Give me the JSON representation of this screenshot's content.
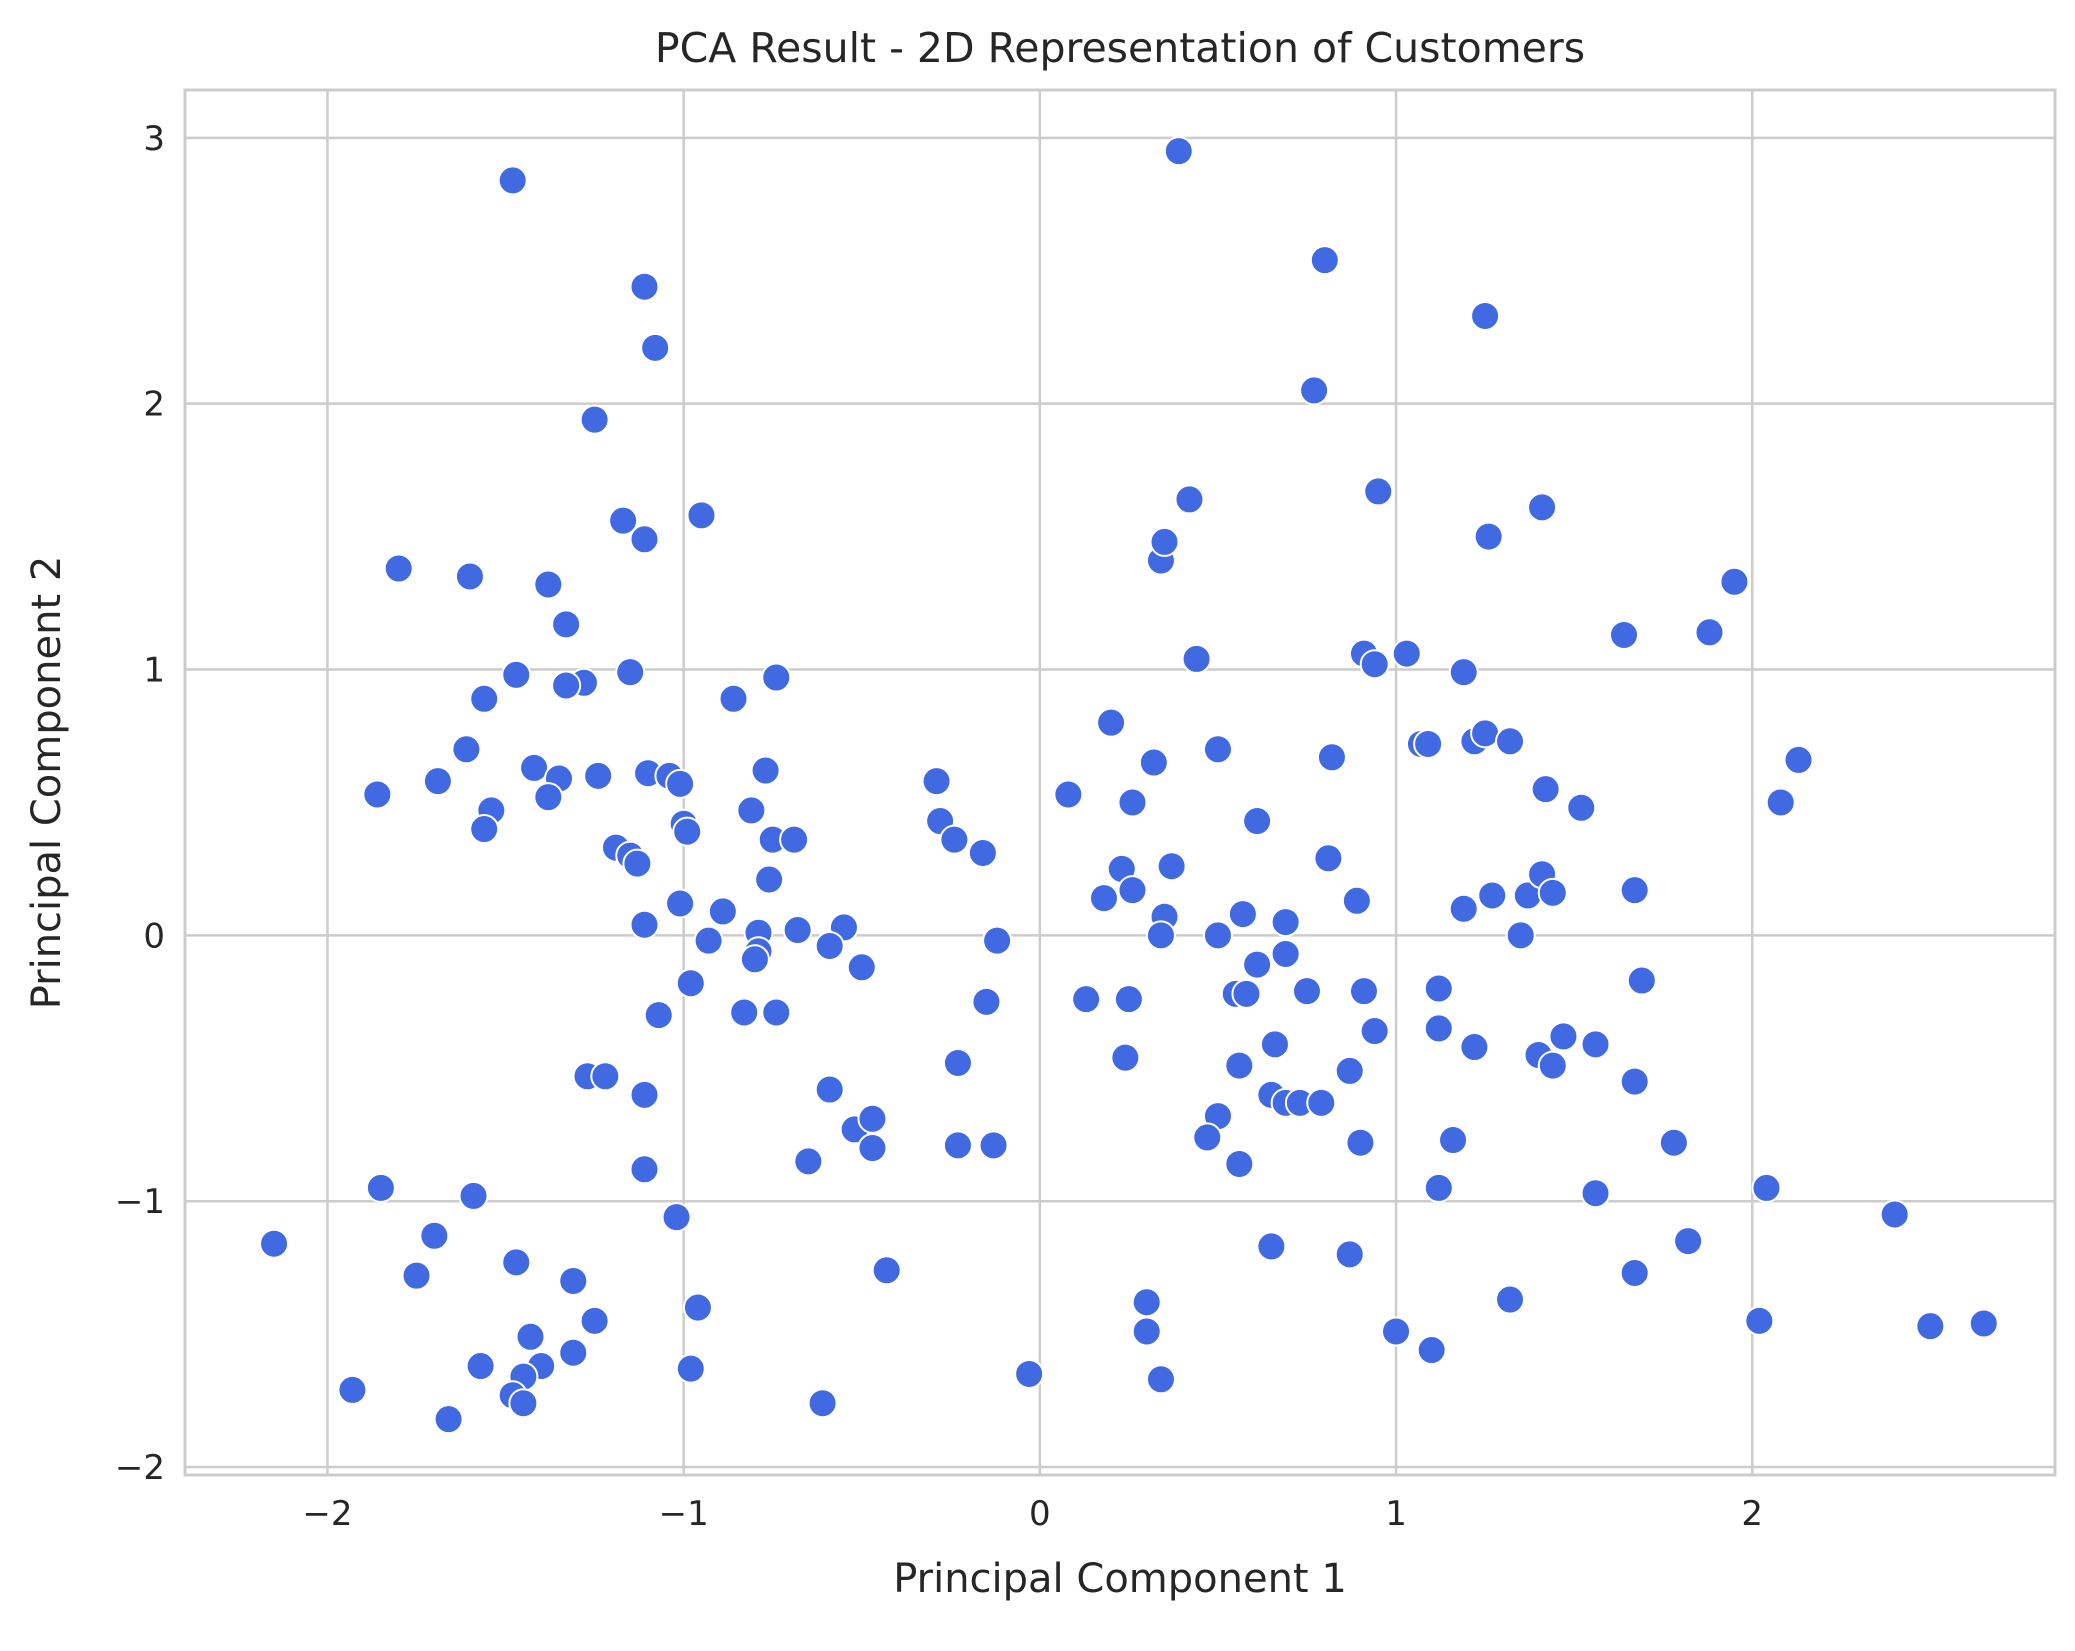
{
  "chart_data": {
    "type": "scatter",
    "title": "PCA Result - 2D Representation of Customers",
    "xlabel": "Principal Component 1",
    "ylabel": "Principal Component 2",
    "xlim": [
      -2.4,
      2.85
    ],
    "ylim": [
      -2.03,
      3.18
    ],
    "xticks": [
      -2,
      -1,
      0,
      1,
      2
    ],
    "yticks": [
      -2,
      -1,
      0,
      1,
      2,
      3
    ],
    "xtick_labels": [
      "−2",
      "−1",
      "0",
      "1",
      "2"
    ],
    "ytick_labels": [
      "−2",
      "−1",
      "0",
      "1",
      "2",
      "3"
    ],
    "grid": true,
    "marker_color": "#4169E1",
    "marker_edge_color": "#ffffff",
    "grid_color": "#cccccc",
    "points": [
      [
        -1.48,
        2.84
      ],
      [
        -1.11,
        2.44
      ],
      [
        -1.08,
        2.21
      ],
      [
        -1.25,
        1.94
      ],
      [
        -0.95,
        1.58
      ],
      [
        -1.17,
        1.56
      ],
      [
        -1.11,
        1.49
      ],
      [
        -1.8,
        1.38
      ],
      [
        -1.6,
        1.35
      ],
      [
        -1.38,
        1.32
      ],
      [
        -1.33,
        1.17
      ],
      [
        -1.15,
        0.99
      ],
      [
        -1.47,
        0.98
      ],
      [
        -1.28,
        0.95
      ],
      [
        -1.33,
        0.94
      ],
      [
        -1.56,
        0.89
      ],
      [
        -0.86,
        0.89
      ],
      [
        -0.74,
        0.97
      ],
      [
        -1.61,
        0.7
      ],
      [
        -1.42,
        0.63
      ],
      [
        -1.69,
        0.58
      ],
      [
        -1.35,
        0.59
      ],
      [
        -1.24,
        0.6
      ],
      [
        -1.1,
        0.61
      ],
      [
        -1.04,
        0.6
      ],
      [
        -1.01,
        0.57
      ],
      [
        -0.77,
        0.62
      ],
      [
        -1.86,
        0.53
      ],
      [
        -1.38,
        0.52
      ],
      [
        -1.54,
        0.47
      ],
      [
        -1.56,
        0.4
      ],
      [
        -0.81,
        0.47
      ],
      [
        -1.0,
        0.42
      ],
      [
        -0.99,
        0.39
      ],
      [
        -0.75,
        0.36
      ],
      [
        -0.69,
        0.36
      ],
      [
        -1.19,
        0.33
      ],
      [
        -1.15,
        0.3
      ],
      [
        -1.13,
        0.27
      ],
      [
        -0.76,
        0.21
      ],
      [
        -1.11,
        0.04
      ],
      [
        -1.01,
        0.12
      ],
      [
        -0.89,
        0.09
      ],
      [
        -0.93,
        -0.02
      ],
      [
        -0.79,
        0.01
      ],
      [
        -0.79,
        -0.06
      ],
      [
        -0.8,
        -0.09
      ],
      [
        -0.68,
        0.02
      ],
      [
        -0.55,
        0.03
      ],
      [
        -0.59,
        -0.04
      ],
      [
        -0.5,
        -0.12
      ],
      [
        -0.98,
        -0.18
      ],
      [
        -1.07,
        -0.3
      ],
      [
        -0.83,
        -0.29
      ],
      [
        -0.74,
        -0.29
      ],
      [
        -1.27,
        -0.53
      ],
      [
        -1.22,
        -0.53
      ],
      [
        -1.11,
        -0.6
      ],
      [
        -0.59,
        -0.58
      ],
      [
        -1.11,
        -0.88
      ],
      [
        -0.65,
        -0.85
      ],
      [
        -0.52,
        -0.73
      ],
      [
        -0.47,
        -0.69
      ],
      [
        -0.47,
        -0.8
      ],
      [
        -1.02,
        -1.06
      ],
      [
        -1.85,
        -0.95
      ],
      [
        -2.15,
        -1.16
      ],
      [
        -1.59,
        -0.98
      ],
      [
        -1.7,
        -1.13
      ],
      [
        -1.75,
        -1.28
      ],
      [
        -1.47,
        -1.23
      ],
      [
        -1.31,
        -1.3
      ],
      [
        -1.25,
        -1.45
      ],
      [
        -1.43,
        -1.51
      ],
      [
        -1.31,
        -1.57
      ],
      [
        -1.4,
        -1.62
      ],
      [
        -1.57,
        -1.62
      ],
      [
        -1.45,
        -1.66
      ],
      [
        -1.48,
        -1.73
      ],
      [
        -1.45,
        -1.76
      ],
      [
        -1.66,
        -1.82
      ],
      [
        -1.93,
        -1.71
      ],
      [
        -0.96,
        -1.4
      ],
      [
        -0.98,
        -1.63
      ],
      [
        -0.61,
        -1.76
      ],
      [
        -0.43,
        -1.26
      ],
      [
        -0.29,
        0.58
      ],
      [
        -0.28,
        0.43
      ],
      [
        -0.24,
        0.36
      ],
      [
        -0.16,
        0.31
      ],
      [
        -0.12,
        -0.02
      ],
      [
        -0.15,
        -0.25
      ],
      [
        -0.23,
        -0.48
      ],
      [
        -0.23,
        -0.79
      ],
      [
        -0.13,
        -0.79
      ],
      [
        -0.03,
        -1.65
      ],
      [
        0.08,
        0.53
      ],
      [
        0.13,
        -0.24
      ],
      [
        0.18,
        0.14
      ],
      [
        0.2,
        0.8
      ],
      [
        0.23,
        0.25
      ],
      [
        0.26,
        0.17
      ],
      [
        0.26,
        0.5
      ],
      [
        0.25,
        -0.24
      ],
      [
        0.24,
        -0.46
      ],
      [
        0.32,
        0.65
      ],
      [
        0.34,
        1.41
      ],
      [
        0.35,
        1.48
      ],
      [
        0.37,
        0.26
      ],
      [
        0.35,
        0.07
      ],
      [
        0.34,
        0.0
      ],
      [
        0.39,
        2.95
      ],
      [
        0.42,
        1.64
      ],
      [
        0.44,
        1.04
      ],
      [
        0.5,
        0.7
      ],
      [
        0.5,
        0.0
      ],
      [
        0.55,
        -0.22
      ],
      [
        0.58,
        -0.22
      ],
      [
        0.56,
        -0.49
      ],
      [
        0.5,
        -0.68
      ],
      [
        0.47,
        -0.76
      ],
      [
        0.57,
        0.08
      ],
      [
        0.61,
        0.43
      ],
      [
        0.61,
        -0.11
      ],
      [
        0.69,
        -0.07
      ],
      [
        0.69,
        0.05
      ],
      [
        0.66,
        -0.41
      ],
      [
        0.65,
        -0.6
      ],
      [
        0.69,
        -0.63
      ],
      [
        0.73,
        -0.63
      ],
      [
        0.79,
        -0.63
      ],
      [
        0.75,
        -0.21
      ],
      [
        0.56,
        -0.86
      ],
      [
        0.65,
        -1.17
      ],
      [
        0.3,
        -1.38
      ],
      [
        0.3,
        -1.49
      ],
      [
        0.34,
        -1.67
      ],
      [
        0.8,
        2.54
      ],
      [
        0.77,
        2.05
      ],
      [
        0.95,
        1.67
      ],
      [
        0.91,
        1.06
      ],
      [
        0.94,
        1.02
      ],
      [
        1.03,
        1.06
      ],
      [
        1.19,
        0.99
      ],
      [
        0.82,
        0.67
      ],
      [
        0.81,
        0.29
      ],
      [
        0.89,
        0.13
      ],
      [
        1.07,
        0.72
      ],
      [
        1.09,
        0.72
      ],
      [
        0.91,
        -0.21
      ],
      [
        0.94,
        -0.36
      ],
      [
        0.87,
        -0.51
      ],
      [
        0.9,
        -0.78
      ],
      [
        0.87,
        -1.2
      ],
      [
        1.0,
        -1.49
      ],
      [
        1.1,
        -1.56
      ],
      [
        1.12,
        -0.95
      ],
      [
        1.16,
        -0.77
      ],
      [
        1.12,
        -0.35
      ],
      [
        1.12,
        -0.2
      ],
      [
        1.19,
        0.1
      ],
      [
        1.22,
        0.73
      ],
      [
        1.25,
        0.76
      ],
      [
        1.25,
        2.33
      ],
      [
        1.26,
        1.5
      ],
      [
        1.41,
        1.61
      ],
      [
        1.32,
        0.73
      ],
      [
        1.42,
        0.55
      ],
      [
        1.27,
        0.15
      ],
      [
        1.37,
        0.15
      ],
      [
        1.41,
        0.23
      ],
      [
        1.44,
        0.16
      ],
      [
        1.35,
        0.0
      ],
      [
        1.22,
        -0.42
      ],
      [
        1.4,
        -0.45
      ],
      [
        1.44,
        -0.49
      ],
      [
        1.47,
        -0.38
      ],
      [
        1.52,
        0.48
      ],
      [
        1.56,
        -0.41
      ],
      [
        1.56,
        -0.97
      ],
      [
        1.32,
        -1.37
      ],
      [
        1.64,
        1.13
      ],
      [
        1.67,
        0.17
      ],
      [
        1.69,
        -0.17
      ],
      [
        1.67,
        -0.55
      ],
      [
        1.78,
        -0.78
      ],
      [
        1.82,
        -1.15
      ],
      [
        1.67,
        -1.27
      ],
      [
        1.88,
        1.14
      ],
      [
        1.95,
        1.33
      ],
      [
        2.13,
        0.66
      ],
      [
        2.08,
        0.5
      ],
      [
        2.04,
        -0.95
      ],
      [
        2.02,
        -1.45
      ],
      [
        2.4,
        -1.05
      ],
      [
        2.5,
        -1.47
      ],
      [
        2.65,
        -1.46
      ]
    ]
  }
}
